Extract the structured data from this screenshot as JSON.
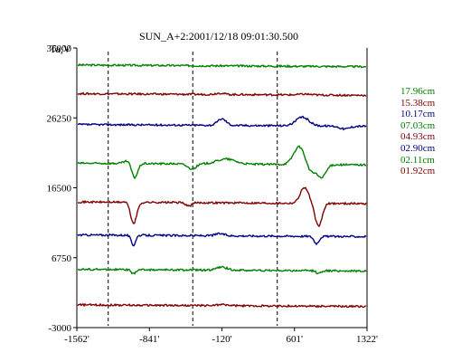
{
  "chart_data": {
    "type": "line",
    "title": "SUN_A+2:2001/12/18 09:01:30.500",
    "ylabel": "Ta,V",
    "xlabel": "",
    "ylim": [
      -3000,
      36000
    ],
    "xlim": [
      -1562,
      1322
    ],
    "yticks": [
      "36000",
      "26250",
      "16500",
      "6750",
      "-3000"
    ],
    "xticks": [
      "-1562'",
      "-841'",
      "-120'",
      "601'",
      "1322'"
    ],
    "ytick_values": [
      36000,
      26250,
      16500,
      6750,
      -3000
    ],
    "xtick_values": [
      -1562,
      -841,
      -120,
      601,
      1322
    ],
    "dashed_x": [
      -1250,
      -410,
      430
    ],
    "grid": false,
    "legend_position": "right",
    "series": [
      {
        "name": "17.96cm",
        "color": "#008000",
        "baseline": 33500,
        "events": []
      },
      {
        "name": "15.38cm",
        "color": "#800000",
        "baseline": 29500,
        "events": [
          [
            -140,
            200,
            60
          ],
          [
            700,
            120,
            80
          ]
        ]
      },
      {
        "name": "10.17cm",
        "color": "#000080",
        "baseline": 25200,
        "events": [
          [
            -120,
            900,
            60
          ],
          [
            680,
            1200,
            90
          ],
          [
            1100,
            -400,
            70
          ]
        ]
      },
      {
        "name": "07.03cm",
        "color": "#008000",
        "baseline": 19800,
        "events": [
          [
            -1020,
            700,
            70
          ],
          [
            -990,
            -2500,
            45
          ],
          [
            -420,
            -700,
            60
          ],
          [
            -80,
            700,
            130
          ],
          [
            650,
            2500,
            80
          ],
          [
            760,
            -1200,
            60
          ],
          [
            870,
            -1800,
            60
          ]
        ]
      },
      {
        "name": "04.93cm",
        "color": "#800000",
        "baseline": 14400,
        "events": [
          [
            -1030,
            400,
            50
          ],
          [
            -1000,
            -3200,
            45
          ],
          [
            -450,
            -500,
            40
          ],
          [
            700,
            2200,
            60
          ],
          [
            840,
            -3200,
            50
          ]
        ]
      },
      {
        "name": "02.90cm",
        "color": "#000080",
        "baseline": 9800,
        "events": [
          [
            -1000,
            -1400,
            30
          ],
          [
            -140,
            300,
            60
          ],
          [
            820,
            -1000,
            35
          ]
        ]
      },
      {
        "name": "02.11cm",
        "color": "#008000",
        "baseline": 5000,
        "events": [
          [
            -1000,
            -600,
            30
          ],
          [
            -120,
            400,
            80
          ],
          [
            840,
            -400,
            30
          ]
        ]
      },
      {
        "name": "01.92cm",
        "color": "#800000",
        "baseline": 50,
        "events": [
          [
            -120,
            150,
            80
          ]
        ]
      }
    ]
  }
}
